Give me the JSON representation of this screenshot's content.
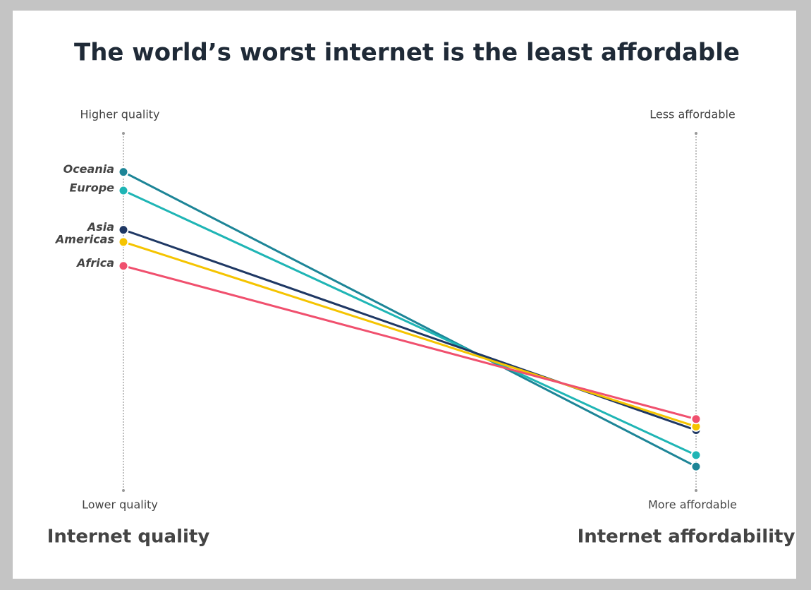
{
  "chart_data": {
    "type": "slope",
    "title": "The world’s worst internet is the least affordable",
    "axes": [
      {
        "title": "Internet quality",
        "top": "Higher quality",
        "bottom": "Lower quality"
      },
      {
        "title": "Internet affordability",
        "top": "Less affordable",
        "bottom": "More affordable"
      }
    ],
    "ylim": [
      0,
      100
    ],
    "y2lim": [
      0,
      100
    ],
    "series": [
      {
        "name": "Oceania",
        "color": "#1d8597",
        "values": [
          89.2,
          6.7
        ]
      },
      {
        "name": "Europe",
        "color": "#1fb5b5",
        "values": [
          84.0,
          9.9
        ]
      },
      {
        "name": "Asia",
        "color": "#1f3864",
        "values": [
          73.0,
          16.9
        ]
      },
      {
        "name": "Americas",
        "color": "#f5c400",
        "values": [
          69.6,
          17.9
        ]
      },
      {
        "name": "Africa",
        "color": "#f0506e",
        "values": [
          62.9,
          20.0
        ]
      }
    ]
  }
}
